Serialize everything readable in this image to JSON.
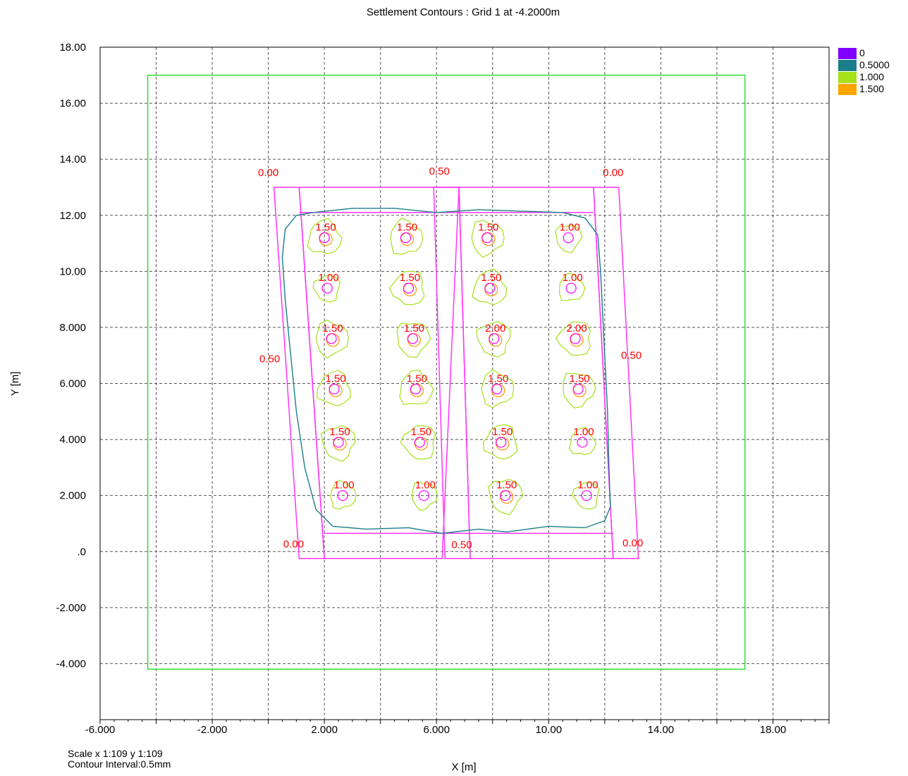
{
  "chart_data": {
    "type": "contour",
    "title": "Settlement Contours : Grid 1 at -4.2000m",
    "xlabel": "X [m]",
    "ylabel": "Y [m]",
    "xlim": [
      -6.0,
      20.0
    ],
    "ylim": [
      -6.0,
      18.0
    ],
    "x_ticks": [
      {
        "value": -6,
        "label": "-6.000"
      },
      {
        "value": -2,
        "label": "-2.000"
      },
      {
        "value": 2,
        "label": "2.000"
      },
      {
        "value": 6,
        "label": "6.000"
      },
      {
        "value": 10,
        "label": "10.00"
      },
      {
        "value": 14,
        "label": "14.00"
      },
      {
        "value": 18,
        "label": "18.00"
      }
    ],
    "y_ticks": [
      {
        "value": 18,
        "label": "18.00"
      },
      {
        "value": 16,
        "label": "16.00"
      },
      {
        "value": 14,
        "label": "14.00"
      },
      {
        "value": 12,
        "label": "12.00"
      },
      {
        "value": 10,
        "label": "10.00"
      },
      {
        "value": 8,
        "label": "8.000"
      },
      {
        "value": 6,
        "label": "6.000"
      },
      {
        "value": 4,
        "label": "4.000"
      },
      {
        "value": 2,
        "label": "2.000"
      },
      {
        "value": 0,
        "label": ".0"
      },
      {
        "value": -2,
        "label": "-2.000"
      },
      {
        "value": -4,
        "label": "-4.000"
      }
    ],
    "grid": true,
    "legend_position": "top-right",
    "legend": [
      {
        "label": "0",
        "color": "#7f00ff"
      },
      {
        "label": "0.5000",
        "color": "#1a7f8a"
      },
      {
        "label": "1.000",
        "color": "#a6e11a"
      },
      {
        "label": "1.500",
        "color": "#ffa500"
      }
    ],
    "colors": {
      "grid_boundary": "#33dd33",
      "structure": "#ff33ff",
      "contour_05": "#1a7f8a",
      "contour_10": "#a6e11a",
      "contour_15": "#ff9900",
      "pile": "#ff00ff",
      "label": "#ff0000"
    },
    "grid_boundary": {
      "x": [
        -4.3,
        17.0
      ],
      "y": [
        -4.2,
        17.0
      ]
    },
    "outer_structure": [
      [
        1.1,
        13.0
      ],
      [
        -0.9,
        12.0
      ],
      [
        0.0,
        13.0
      ],
      [
        2.5,
        0.0
      ]
    ],
    "structure_lines": [
      {
        "pts": [
          [
            1.6,
            12.1
          ],
          [
            5.6,
            12.1
          ],
          [
            6.3,
            0.7
          ],
          [
            1.6,
            0.7
          ]
        ]
      },
      {
        "pts": [
          [
            6.4,
            12.1
          ],
          [
            11.2,
            12.1
          ],
          [
            12.0,
            0.7
          ],
          [
            7.3,
            0.7
          ]
        ]
      }
    ],
    "piles": [
      {
        "x": 2.0,
        "y": 11.2,
        "label": "1.50"
      },
      {
        "x": 4.9,
        "y": 11.2,
        "label": "1.50"
      },
      {
        "x": 7.8,
        "y": 11.2,
        "label": "1.50"
      },
      {
        "x": 10.7,
        "y": 11.2,
        "label": "1.00"
      },
      {
        "x": 2.1,
        "y": 9.4,
        "label": "1.00"
      },
      {
        "x": 5.0,
        "y": 9.4,
        "label": "1.50"
      },
      {
        "x": 7.9,
        "y": 9.4,
        "label": "1.50"
      },
      {
        "x": 10.8,
        "y": 9.4,
        "label": "1.00"
      },
      {
        "x": 2.25,
        "y": 7.6,
        "label": "1.50"
      },
      {
        "x": 5.15,
        "y": 7.6,
        "label": "1.50"
      },
      {
        "x": 8.05,
        "y": 7.6,
        "label": "2.00"
      },
      {
        "x": 10.95,
        "y": 7.6,
        "label": "2.00"
      },
      {
        "x": 2.35,
        "y": 5.8,
        "label": "1.50"
      },
      {
        "x": 5.25,
        "y": 5.8,
        "label": "1.50"
      },
      {
        "x": 8.15,
        "y": 5.8,
        "label": "1.50"
      },
      {
        "x": 11.05,
        "y": 5.8,
        "label": "1.50"
      },
      {
        "x": 2.5,
        "y": 3.9,
        "label": "1.50"
      },
      {
        "x": 5.4,
        "y": 3.9,
        "label": "1.50"
      },
      {
        "x": 8.3,
        "y": 3.9,
        "label": "1.50"
      },
      {
        "x": 11.2,
        "y": 3.9,
        "label": "1.00"
      },
      {
        "x": 2.65,
        "y": 2.0,
        "label": "1.00"
      },
      {
        "x": 5.55,
        "y": 2.0,
        "label": "1.00"
      },
      {
        "x": 8.45,
        "y": 2.0,
        "label": "1.50"
      },
      {
        "x": 11.35,
        "y": 2.0,
        "label": "1.00"
      }
    ],
    "contour_labels": [
      {
        "x": 0.0,
        "y": 13.4,
        "label": "0.00"
      },
      {
        "x": 6.1,
        "y": 13.45,
        "label": "0.50"
      },
      {
        "x": 12.3,
        "y": 13.4,
        "label": "0.00"
      },
      {
        "x": 0.05,
        "y": 6.75,
        "label": "0.50"
      },
      {
        "x": 12.95,
        "y": 6.88,
        "label": "0.50"
      },
      {
        "x": 0.9,
        "y": 0.15,
        "label": "0.00"
      },
      {
        "x": 6.9,
        "y": 0.12,
        "label": "0.50"
      },
      {
        "x": 13.0,
        "y": 0.18,
        "label": "0.00"
      }
    ]
  },
  "footer": {
    "scale": "Scale x 1:109  y 1:109",
    "interval": "Contour Interval:0.5mm"
  }
}
